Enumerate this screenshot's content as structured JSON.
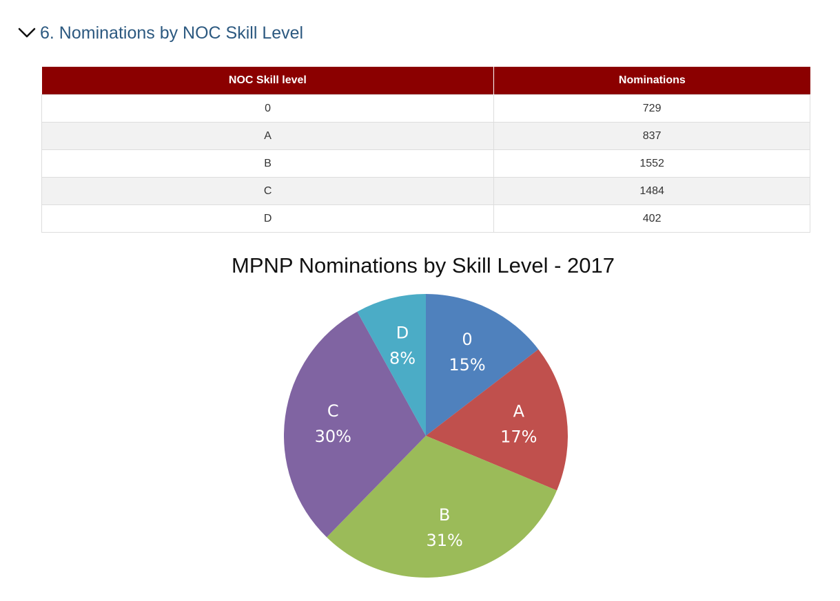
{
  "section": {
    "title": "6. Nominations by NOC Skill Level"
  },
  "table": {
    "headers": [
      "NOC Skill level",
      "Nominations"
    ],
    "rows": [
      {
        "level": "0",
        "nominations": "729"
      },
      {
        "level": "A",
        "nominations": "837"
      },
      {
        "level": "B",
        "nominations": "1552"
      },
      {
        "level": "C",
        "nominations": "1484"
      },
      {
        "level": "D",
        "nominations": "402"
      }
    ]
  },
  "chart_data": {
    "type": "pie",
    "title": "MPNP Nominations by Skill Level - 2017",
    "categories": [
      "0",
      "A",
      "B",
      "C",
      "D"
    ],
    "values": [
      729,
      837,
      1552,
      1484,
      402
    ],
    "percent_labels": [
      "15%",
      "17%",
      "31%",
      "30%",
      "8%"
    ],
    "colors": [
      "#4f81bd",
      "#c0504d",
      "#9bbb59",
      "#8064a2",
      "#4bacc6"
    ],
    "start": "12 o'clock",
    "direction": "clockwise",
    "legend": "none"
  },
  "icons": {
    "collapse": "chevron-down-icon"
  }
}
